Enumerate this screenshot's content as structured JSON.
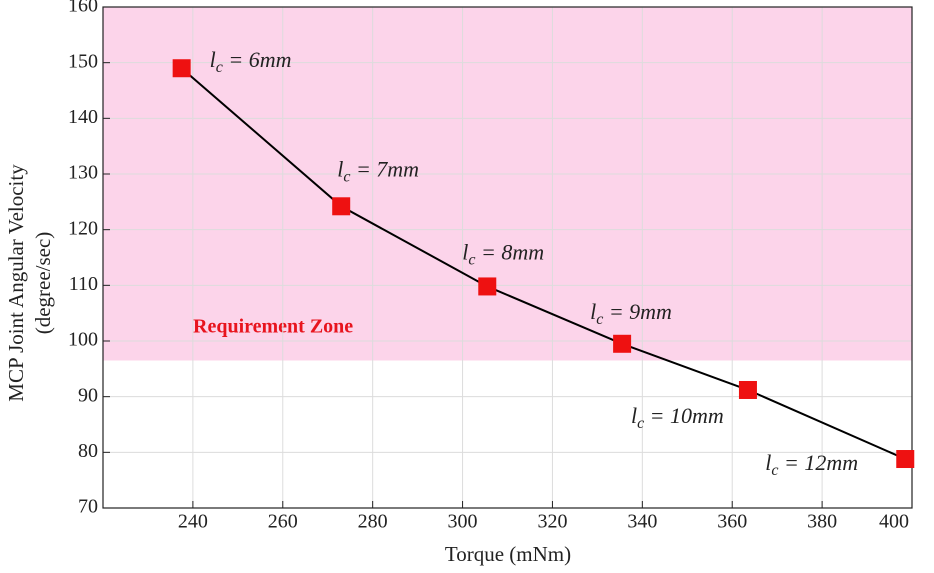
{
  "chart_data": {
    "type": "line",
    "x_label": "Torque (mNm)",
    "y_label": [
      "MCP Joint Angular Velocity",
      "(degree/sec)"
    ],
    "x": [
      237.5,
      273,
      305.5,
      335.5,
      363.5,
      398.5
    ],
    "values": [
      149,
      124.2,
      109.8,
      99.5,
      91.2,
      78.8
    ],
    "line_color": "#000000",
    "marker_color": "#ee1111",
    "point_labels": [
      {
        "symbol": "l",
        "subscript": "c",
        "rest": " = 6mm"
      },
      {
        "symbol": "l",
        "subscript": "c",
        "rest": " = 7mm"
      },
      {
        "symbol": "l",
        "subscript": "c",
        "rest": " = 8mm"
      },
      {
        "symbol": "l",
        "subscript": "c",
        "rest": " = 9mm"
      },
      {
        "symbol": "l",
        "subscript": "c",
        "rest": " = 10mm"
      },
      {
        "symbol": "l",
        "subscript": "c",
        "rest": " = 12mm"
      }
    ],
    "zone": {
      "label": "Requirement Zone",
      "from": 96.5,
      "color": "#fcd4ea"
    },
    "xlim": [
      220,
      400
    ],
    "ylim": [
      70,
      160
    ],
    "xticks": [
      240,
      260,
      280,
      300,
      320,
      340,
      360,
      380,
      400
    ],
    "yticks": [
      70,
      80,
      90,
      100,
      110,
      120,
      130,
      140,
      150,
      160
    ],
    "grid": true
  }
}
